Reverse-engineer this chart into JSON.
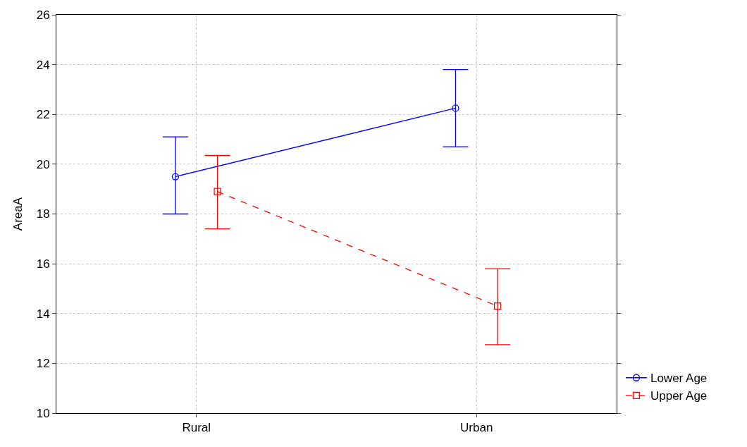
{
  "chart_data": {
    "type": "line",
    "ylabel": "AreaA",
    "categories": [
      "Rural",
      "Urban"
    ],
    "ylim": [
      10,
      26
    ],
    "yticks": [
      10,
      12,
      14,
      16,
      18,
      20,
      22,
      24,
      26
    ],
    "grid": true,
    "legend": "bottom right",
    "series": [
      {
        "name": "Lower Age",
        "color": "#0000ff",
        "values": [
          19.5,
          22.25
        ],
        "errors": [
          [
            18.0,
            21.1
          ],
          [
            20.7,
            23.8
          ]
        ],
        "marker": "circle",
        "line_style": "solid"
      },
      {
        "name": "Upper Age",
        "color": "#ff0000",
        "values": [
          18.9,
          14.3
        ],
        "errors": [
          [
            17.4,
            20.35
          ],
          [
            12.75,
            15.8
          ]
        ],
        "marker": "square",
        "line_style": "dashed"
      }
    ]
  }
}
